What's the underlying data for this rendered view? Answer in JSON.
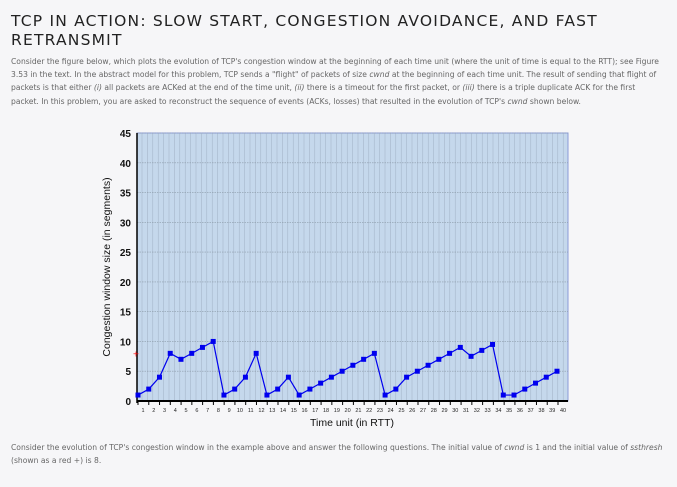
{
  "title": "TCP IN ACTION: SLOW START, CONGESTION AVOIDANCE, AND FAST RETRANSMIT",
  "intro": [
    "Consider the figure below, which plots the evolution of TCP's congestion window at the beginning of each time unit (where the unit of time is equal to the RTT); see Figure 3.53 in the text. In the abstract model for this problem, TCP sends a \"flight\" of packets of size ",
    "cwnd",
    " at the beginning of each time unit. The result of sending that flight of packets is that either ",
    "(i)",
    " all packets are ACKed at the end of the time unit, ",
    "(ii)",
    " there is a timeout for the first packet, or ",
    "(iii)",
    " there is a triple duplicate ACK for the first packet. In this problem, you are asked to reconstruct the sequence of events (ACKs, losses) that resulted in the evolution of TCP's ",
    "cwnd",
    " shown below."
  ],
  "outro": [
    "Consider the evolution of TCP's congestion window in the example above and answer the following questions. The initial value of ",
    "cwnd",
    " is 1 and the initial value of ",
    "ssthresh",
    " (shown as a red +) is 8."
  ],
  "chart_data": {
    "type": "line",
    "xlabel": "Time unit (in RTT)",
    "ylabel": "Congestion window size (in segments)",
    "ylim": [
      0,
      45
    ],
    "yticks": [
      0,
      5,
      10,
      15,
      20,
      25,
      30,
      35,
      40,
      45
    ],
    "xticks": [
      1,
      2,
      3,
      4,
      5,
      6,
      7,
      8,
      9,
      10,
      11,
      12,
      13,
      14,
      15,
      16,
      17,
      18,
      19,
      20,
      21,
      22,
      23,
      24,
      25,
      26,
      27,
      28,
      29,
      30,
      31,
      32,
      33,
      34,
      35,
      36,
      37,
      38,
      39,
      40
    ],
    "grid": true,
    "ssthresh_marker": 8,
    "series": [
      {
        "values": [
          1,
          2,
          4,
          8,
          7,
          8,
          9,
          10,
          1,
          2,
          4,
          8,
          1,
          2,
          4,
          1,
          2,
          3,
          4,
          5,
          6,
          7,
          8,
          1,
          2,
          4,
          5,
          6,
          7,
          8,
          9,
          7.5,
          8.5,
          9.5,
          1,
          1,
          2,
          3,
          4,
          5
        ]
      }
    ],
    "colors": {
      "line": "#0000ee",
      "plot_bg": "#c5d8ec",
      "marker": "#ff0000"
    }
  }
}
